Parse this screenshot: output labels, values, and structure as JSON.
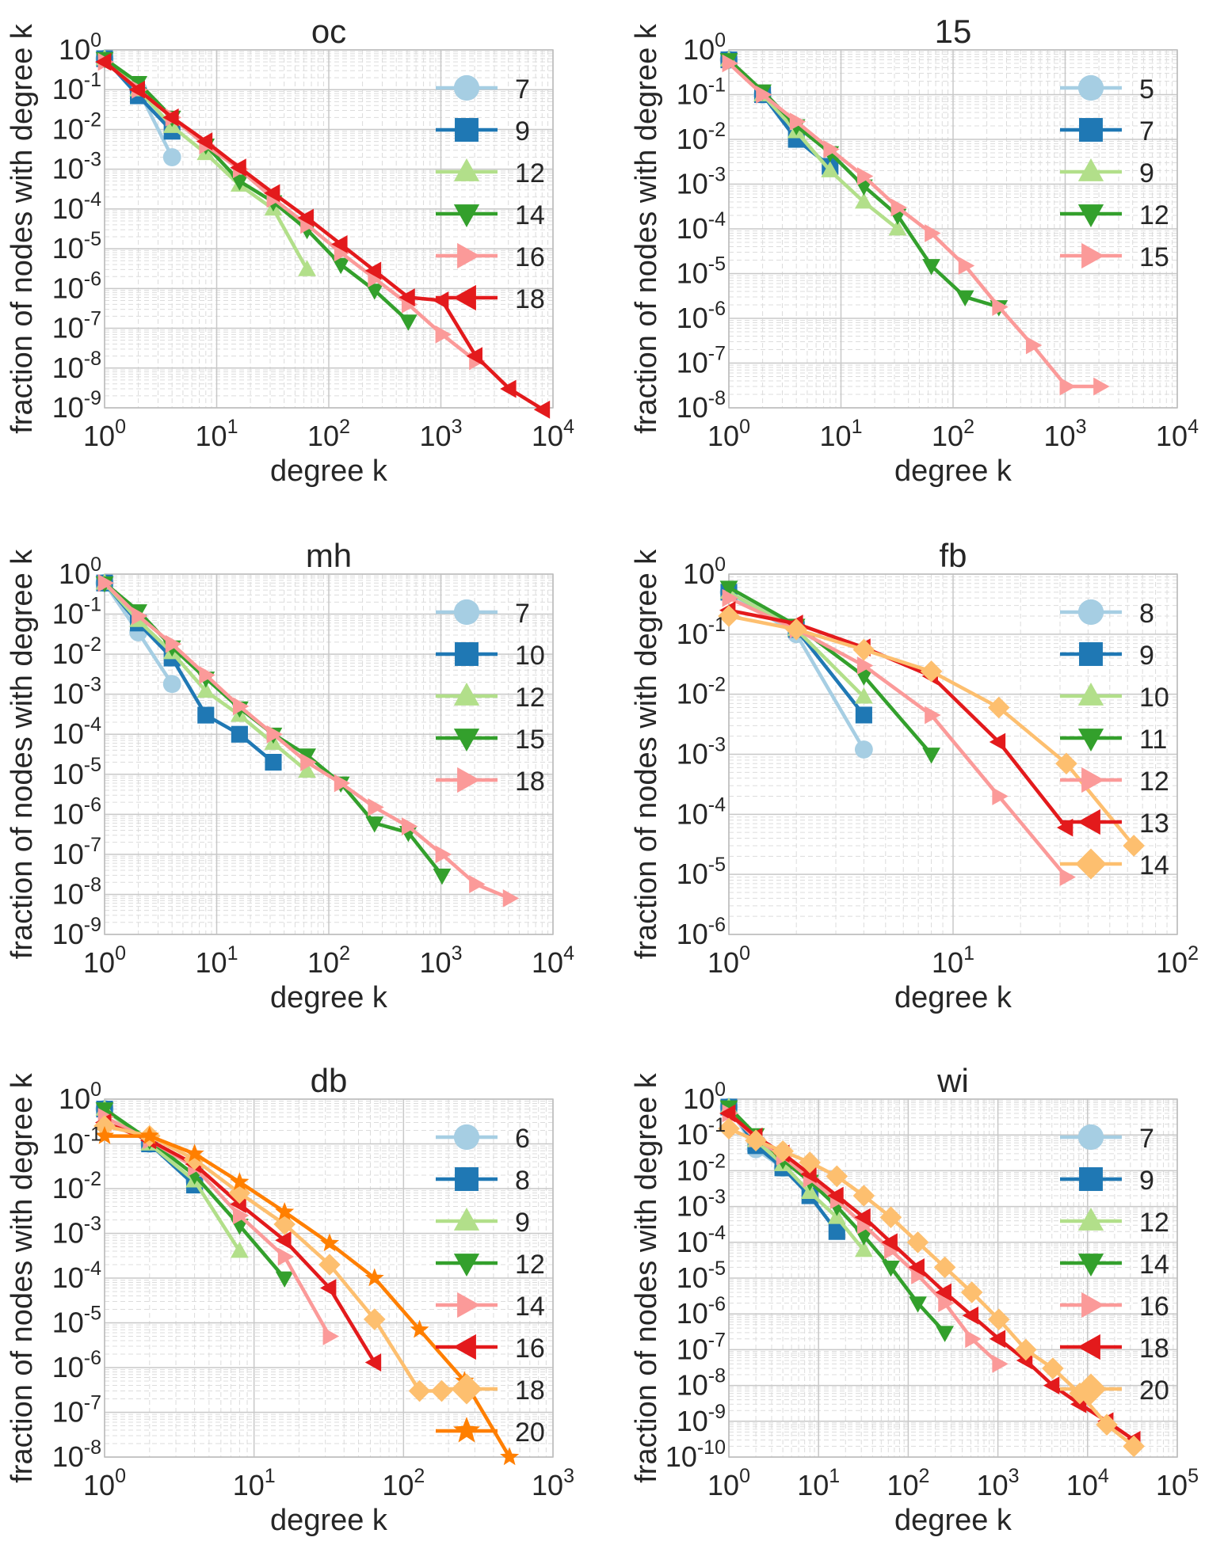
{
  "colors": {
    "c1": "#a6cee3",
    "c2": "#1f78b4",
    "c3": "#b2df8a",
    "c4": "#33a02c",
    "c5": "#fb9a99",
    "c6": "#e31a1c",
    "c7": "#fdbf6f",
    "c8": "#ff7f00"
  },
  "chart_data": [
    {
      "type": "line",
      "title": "oc",
      "xlabel": "degree k",
      "ylabel": "fraction of nodes with degree k",
      "xlim_exp": [
        0,
        4
      ],
      "ylim_exp": [
        -9,
        0
      ],
      "xtick_exps": [
        "0",
        "1",
        "2",
        "3",
        "4"
      ],
      "ytick_exps": [
        "0",
        "-1",
        "-2",
        "-3",
        "-4",
        "-5",
        "-6",
        "-7",
        "-8",
        "-9"
      ],
      "tick_base": "10",
      "legend_position": "upper-right",
      "series": [
        {
          "name": "7",
          "color": "c1",
          "marker": "circle",
          "x": [
            1,
            2,
            4
          ],
          "y": [
            0.6,
            0.1,
            0.002
          ]
        },
        {
          "name": "9",
          "color": "c2",
          "marker": "square",
          "x": [
            1,
            2,
            4
          ],
          "y": [
            0.6,
            0.07,
            0.009
          ]
        },
        {
          "name": "12",
          "color": "c3",
          "marker": "triangle-up",
          "x": [
            1,
            2,
            4,
            8,
            16,
            32,
            64
          ],
          "y": [
            0.6,
            0.1,
            0.012,
            0.0025,
            0.0004,
            0.0001,
            3e-06
          ]
        },
        {
          "name": "14",
          "color": "c4",
          "marker": "triangle-down",
          "x": [
            1,
            2,
            4,
            8,
            16,
            32,
            64,
            128,
            256,
            512
          ],
          "y": [
            0.6,
            0.15,
            0.02,
            0.004,
            0.0005,
            0.00015,
            3e-05,
            4e-06,
            9e-07,
            1.5e-07
          ]
        },
        {
          "name": "16",
          "color": "c5",
          "marker": "triangle-right",
          "x": [
            1,
            2,
            4,
            8,
            16,
            32,
            64,
            128,
            256,
            512,
            1024,
            2048
          ],
          "y": [
            0.5,
            0.1,
            0.02,
            0.004,
            0.001,
            0.00018,
            4e-05,
            8e-06,
            1.8e-06,
            4e-07,
            7e-08,
            1.5e-08
          ]
        },
        {
          "name": "18",
          "color": "c6",
          "marker": "triangle-left",
          "x": [
            1,
            2,
            4,
            8,
            16,
            32,
            64,
            128,
            256,
            512,
            1024,
            2048,
            4096,
            8192
          ],
          "y": [
            0.5,
            0.1,
            0.02,
            0.005,
            0.0011,
            0.00025,
            6e-05,
            1.3e-05,
            2.8e-06,
            6e-07,
            5e-07,
            2e-08,
            3e-09,
            9e-10
          ]
        }
      ]
    },
    {
      "type": "line",
      "title": "15",
      "xlabel": "degree k",
      "ylabel": "fraction of nodes with degree k",
      "xlim_exp": [
        0,
        4
      ],
      "ylim_exp": [
        -8,
        0
      ],
      "xtick_exps": [
        "0",
        "1",
        "2",
        "3",
        "4"
      ],
      "ytick_exps": [
        "0",
        "-1",
        "-2",
        "-3",
        "-4",
        "-5",
        "-6",
        "-7",
        "-8"
      ],
      "tick_base": "10",
      "legend_position": "upper-right",
      "series": [
        {
          "name": "5",
          "color": "c1",
          "marker": "circle",
          "x": [
            1,
            2
          ],
          "y": [
            0.6,
            0.1
          ]
        },
        {
          "name": "7",
          "color": "c2",
          "marker": "square",
          "x": [
            1,
            2,
            4,
            8
          ],
          "y": [
            0.6,
            0.1,
            0.01,
            0.0025
          ]
        },
        {
          "name": "9",
          "color": "c3",
          "marker": "triangle-up",
          "x": [
            1,
            2,
            4,
            8,
            16,
            32
          ],
          "y": [
            0.6,
            0.1,
            0.015,
            0.002,
            0.0004,
            0.0001
          ]
        },
        {
          "name": "12",
          "color": "c4",
          "marker": "triangle-down",
          "x": [
            1,
            2,
            4,
            8,
            16,
            32,
            64,
            128,
            256
          ],
          "y": [
            0.6,
            0.12,
            0.02,
            0.005,
            0.0009,
            0.0002,
            1.5e-05,
            3e-06,
            1.8e-06
          ]
        },
        {
          "name": "15",
          "color": "c5",
          "marker": "triangle-right",
          "x": [
            1,
            2,
            4,
            8,
            16,
            32,
            64,
            128,
            256,
            512,
            1024,
            2048
          ],
          "y": [
            0.5,
            0.1,
            0.025,
            0.006,
            0.0015,
            0.0003,
            8e-05,
            1.5e-05,
            1.8e-06,
            2.5e-07,
            3e-08,
            3e-08
          ]
        }
      ]
    },
    {
      "type": "line",
      "title": "mh",
      "xlabel": "degree k",
      "ylabel": "fraction of nodes with degree k",
      "xlim_exp": [
        0,
        4
      ],
      "ylim_exp": [
        -9,
        0
      ],
      "xtick_exps": [
        "0",
        "1",
        "2",
        "3",
        "4"
      ],
      "ytick_exps": [
        "0",
        "-1",
        "-2",
        "-3",
        "-4",
        "-5",
        "-6",
        "-7",
        "-8",
        "-9"
      ],
      "tick_base": "10",
      "legend_position": "upper-right",
      "series": [
        {
          "name": "7",
          "color": "c1",
          "marker": "circle",
          "x": [
            1,
            2,
            4
          ],
          "y": [
            0.6,
            0.035,
            0.0018
          ]
        },
        {
          "name": "10",
          "color": "c2",
          "marker": "square",
          "x": [
            1,
            2,
            4,
            8,
            16,
            32
          ],
          "y": [
            0.6,
            0.06,
            0.008,
            0.0003,
            0.0001,
            2e-05
          ]
        },
        {
          "name": "12",
          "color": "c3",
          "marker": "triangle-up",
          "x": [
            1,
            2,
            4,
            8,
            16,
            32,
            64
          ],
          "y": [
            0.6,
            0.07,
            0.011,
            0.0012,
            0.0003,
            6e-05,
            1.2e-05
          ]
        },
        {
          "name": "15",
          "color": "c4",
          "marker": "triangle-down",
          "x": [
            1,
            2,
            4,
            8,
            16,
            32,
            64,
            128,
            256,
            512,
            1024
          ],
          "y": [
            0.6,
            0.12,
            0.015,
            0.0025,
            0.00045,
            0.0001,
            3e-05,
            6e-06,
            6e-07,
            3.5e-07,
            3e-08
          ]
        },
        {
          "name": "18",
          "color": "c5",
          "marker": "triangle-right",
          "x": [
            1,
            2,
            4,
            8,
            16,
            32,
            64,
            128,
            256,
            512,
            1024,
            2048,
            4096
          ],
          "y": [
            0.6,
            0.09,
            0.018,
            0.003,
            0.0005,
            0.0001,
            2e-05,
            6e-06,
            1.5e-06,
            5e-07,
            1e-07,
            1.8e-08,
            8e-09
          ]
        }
      ]
    },
    {
      "type": "line",
      "title": "fb",
      "xlabel": "degree k",
      "ylabel": "fraction of nodes with degree k",
      "xlim_exp": [
        0,
        2
      ],
      "ylim_exp": [
        -6,
        0
      ],
      "xtick_exps": [
        "0",
        "1",
        "2"
      ],
      "ytick_exps": [
        "0",
        "-1",
        "-2",
        "-3",
        "-4",
        "-5",
        "-6"
      ],
      "tick_base": "10",
      "legend_position": "upper-right",
      "series": [
        {
          "name": "8",
          "color": "c1",
          "marker": "circle",
          "x": [
            1,
            2,
            4
          ],
          "y": [
            0.5,
            0.1,
            0.0012
          ]
        },
        {
          "name": "9",
          "color": "c2",
          "marker": "square",
          "x": [
            1,
            2,
            4
          ],
          "y": [
            0.5,
            0.12,
            0.0045
          ]
        },
        {
          "name": "10",
          "color": "c3",
          "marker": "triangle-up",
          "x": [
            1,
            2,
            4
          ],
          "y": [
            0.5,
            0.12,
            0.009
          ]
        },
        {
          "name": "11",
          "color": "c4",
          "marker": "triangle-down",
          "x": [
            1,
            2,
            4,
            8
          ],
          "y": [
            0.6,
            0.14,
            0.02,
            0.001
          ]
        },
        {
          "name": "12",
          "color": "c5",
          "marker": "triangle-right",
          "x": [
            1,
            2,
            4,
            8,
            16,
            32
          ],
          "y": [
            0.4,
            0.12,
            0.03,
            0.0045,
            0.0002,
            9e-06
          ]
        },
        {
          "name": "13",
          "color": "c6",
          "marker": "triangle-left",
          "x": [
            1,
            2,
            4,
            8,
            16,
            32
          ],
          "y": [
            0.25,
            0.15,
            0.06,
            0.02,
            0.0016,
            6e-05
          ]
        },
        {
          "name": "14",
          "color": "c7",
          "marker": "diamond",
          "x": [
            1,
            2,
            4,
            8,
            16,
            32,
            64
          ],
          "y": [
            0.2,
            0.12,
            0.055,
            0.024,
            0.006,
            0.0007,
            3e-05
          ]
        }
      ]
    },
    {
      "type": "line",
      "title": "db",
      "xlabel": "degree k",
      "ylabel": "fraction of nodes with degree k",
      "xlim_exp": [
        0,
        3
      ],
      "ylim_exp": [
        -8,
        0
      ],
      "xtick_exps": [
        "0",
        "1",
        "2",
        "3"
      ],
      "ytick_exps": [
        "0",
        "-1",
        "-2",
        "-3",
        "-4",
        "-5",
        "-6",
        "-7",
        "-8"
      ],
      "tick_base": "10",
      "legend_position": "upper-right",
      "series": [
        {
          "name": "6",
          "color": "c1",
          "marker": "circle",
          "x": [
            1,
            2,
            4
          ],
          "y": [
            0.6,
            0.1,
            0.015
          ]
        },
        {
          "name": "8",
          "color": "c2",
          "marker": "square",
          "x": [
            1,
            2,
            4
          ],
          "y": [
            0.6,
            0.1,
            0.012
          ]
        },
        {
          "name": "9",
          "color": "c3",
          "marker": "triangle-up",
          "x": [
            1,
            2,
            4,
            8
          ],
          "y": [
            0.6,
            0.1,
            0.015,
            0.0004
          ]
        },
        {
          "name": "12",
          "color": "c4",
          "marker": "triangle-down",
          "x": [
            1,
            2,
            4,
            8,
            16
          ],
          "y": [
            0.6,
            0.12,
            0.02,
            0.0015,
            0.0001
          ]
        },
        {
          "name": "14",
          "color": "c5",
          "marker": "triangle-right",
          "x": [
            1,
            2,
            4,
            8,
            16,
            32
          ],
          "y": [
            0.4,
            0.12,
            0.03,
            0.0025,
            0.0003,
            5e-06
          ]
        },
        {
          "name": "16",
          "color": "c6",
          "marker": "triangle-left",
          "x": [
            1,
            2,
            4,
            8,
            16,
            32,
            64
          ],
          "y": [
            0.3,
            0.12,
            0.035,
            0.0045,
            0.0007,
            6e-05,
            1.3e-06
          ]
        },
        {
          "name": "18",
          "color": "c7",
          "marker": "diamond",
          "x": [
            1,
            2,
            4,
            8,
            16,
            32,
            64,
            128,
            180
          ],
          "y": [
            0.25,
            0.15,
            0.045,
            0.008,
            0.0016,
            0.0002,
            1.2e-05,
            3e-07,
            3e-07
          ]
        },
        {
          "name": "20",
          "color": "c8",
          "marker": "star",
          "x": [
            1,
            2,
            4,
            8,
            16,
            32,
            64,
            128,
            256,
            512
          ],
          "y": [
            0.15,
            0.15,
            0.06,
            0.014,
            0.003,
            0.0006,
            0.0001,
            7e-06,
            5e-07,
            1e-08
          ]
        }
      ]
    },
    {
      "type": "line",
      "title": "wi",
      "xlabel": "degree k",
      "ylabel": "fraction of nodes with degree k",
      "xlim_exp": [
        0,
        5
      ],
      "ylim_exp": [
        -10,
        0
      ],
      "xtick_exps": [
        "0",
        "1",
        "2",
        "3",
        "4",
        "5"
      ],
      "ytick_exps": [
        "0",
        "-1",
        "-2",
        "-3",
        "-4",
        "-5",
        "-6",
        "-7",
        "-8",
        "-9",
        "-10"
      ],
      "tick_base": "10",
      "legend_position": "upper-right",
      "series": [
        {
          "name": "7",
          "color": "c1",
          "marker": "circle",
          "x": [
            1,
            2,
            4
          ],
          "y": [
            0.6,
            0.04,
            0.012
          ]
        },
        {
          "name": "9",
          "color": "c2",
          "marker": "square",
          "x": [
            1,
            2,
            4,
            8,
            16
          ],
          "y": [
            0.6,
            0.05,
            0.012,
            0.002,
            0.0002
          ]
        },
        {
          "name": "12",
          "color": "c3",
          "marker": "triangle-up",
          "x": [
            1,
            2,
            4,
            8,
            16,
            32
          ],
          "y": [
            0.6,
            0.07,
            0.015,
            0.0025,
            0.0005,
            6e-05
          ]
        },
        {
          "name": "14",
          "color": "c4",
          "marker": "triangle-down",
          "x": [
            1,
            2,
            4,
            8,
            16,
            32,
            64,
            128,
            256
          ],
          "y": [
            0.6,
            0.1,
            0.02,
            0.005,
            0.001,
            0.00015,
            2e-05,
            2e-06,
            3e-07
          ]
        },
        {
          "name": "16",
          "color": "c5",
          "marker": "triangle-right",
          "x": [
            1,
            2,
            4,
            8,
            16,
            32,
            64,
            128,
            256,
            512,
            1024
          ],
          "y": [
            0.4,
            0.08,
            0.025,
            0.006,
            0.0015,
            0.0003,
            6e-05,
            1.2e-05,
            2e-06,
            2e-07,
            4e-08
          ]
        },
        {
          "name": "18",
          "color": "c6",
          "marker": "triangle-left",
          "x": [
            1,
            2,
            4,
            8,
            16,
            32,
            64,
            128,
            256,
            512,
            1024,
            2048,
            4096,
            8192,
            16384,
            32768
          ],
          "y": [
            0.4,
            0.09,
            0.03,
            0.008,
            0.002,
            0.0005,
            0.0001,
            2e-05,
            4e-06,
            9e-07,
            2e-07,
            5e-08,
            1e-08,
            3e-09,
            1e-09,
            3e-10
          ]
        },
        {
          "name": "20",
          "color": "c7",
          "marker": "diamond",
          "x": [
            1,
            2,
            4,
            8,
            16,
            32,
            64,
            128,
            256,
            512,
            1024,
            2048,
            4096,
            8192,
            16384,
            32768
          ],
          "y": [
            0.15,
            0.07,
            0.035,
            0.017,
            0.007,
            0.002,
            0.0005,
            0.0001,
            2e-05,
            4e-06,
            7e-07,
            1e-07,
            3e-08,
            6e-09,
            8e-10,
            2e-10
          ]
        }
      ]
    }
  ]
}
